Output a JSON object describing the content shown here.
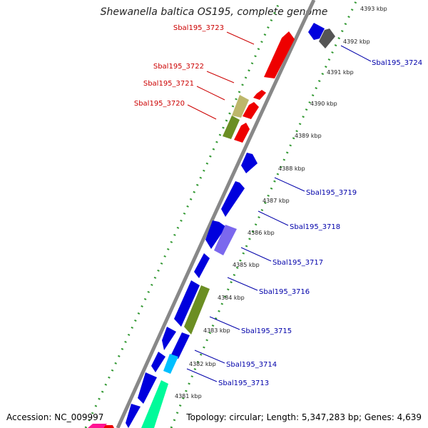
{
  "title": "Shewanella baltica OS195, complete genome",
  "accession": "Accession: NC_009997",
  "summary": "Topology: circular; Length: 5,347,283 bp; Genes: 4,639",
  "kbp_ticks": [
    {
      "label": "4381 kbp",
      "pos": 4381
    },
    {
      "label": "4382 kbp",
      "pos": 4382
    },
    {
      "label": "4383 kbp",
      "pos": 4383
    },
    {
      "label": "4384 kbp",
      "pos": 4384
    },
    {
      "label": "4385 kbp",
      "pos": 4385
    },
    {
      "label": "4386 kbp",
      "pos": 4386
    },
    {
      "label": "4387 kbp",
      "pos": 4387
    },
    {
      "label": "4388 kbp",
      "pos": 4388
    },
    {
      "label": "4389 kbp",
      "pos": 4389
    },
    {
      "label": "4390 kbp",
      "pos": 4390
    },
    {
      "label": "4391 kbp",
      "pos": 4391
    },
    {
      "label": "4392 kbp",
      "pos": 4392
    },
    {
      "label": "4393 kbp",
      "pos": 4393
    }
  ],
  "forward_labels": [
    "Sbal195_3723",
    "Sbal195_3722",
    "Sbal195_3721",
    "Sbal195_3720"
  ],
  "reverse_labels": [
    "Sbal195_3724",
    "Sbal195_3719",
    "Sbal195_3718",
    "Sbal195_3717",
    "Sbal195_3716",
    "Sbal195_3715",
    "Sbal195_3714",
    "Sbal195_3713"
  ],
  "colors": {
    "forward_label": "#cc0000",
    "reverse_label": "#0000aa",
    "backbone": "#999999",
    "tick": "#339933",
    "red_gene": "#ee0000",
    "blue_gene": "#0000dd",
    "olive_gene": "#6b8e23",
    "khaki_gene": "#bdb76b",
    "purple_gene": "#7b68ee",
    "grey_gene": "#555555",
    "cyan_gene": "#00bfff",
    "teal_gene": "#00fa9a",
    "pink_gene": "#ff1493"
  }
}
